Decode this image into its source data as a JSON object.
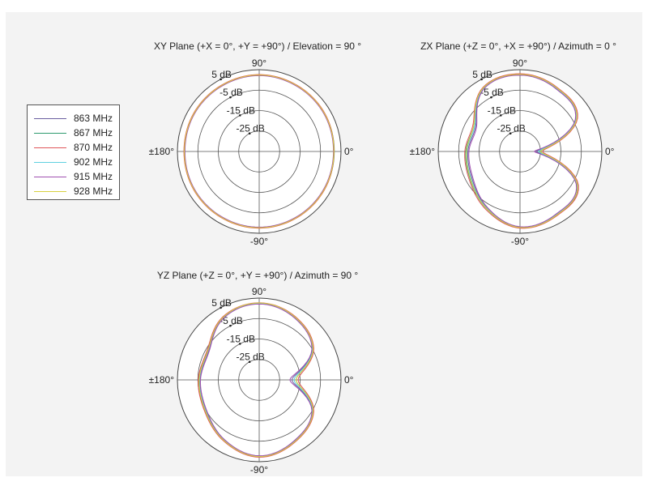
{
  "chart_data": [
    {
      "type": "polar-line",
      "title": "XY Plane (+X = 0°, +Y = +90°) / Elevation = 90 °",
      "angle_labels": {
        "top": "90°",
        "left": "±180°",
        "right": "0°",
        "bottom": "-90°"
      },
      "r_tick_labels": [
        "5 dB",
        "-5 dB",
        "-15 dB",
        "-25 dB"
      ],
      "r_range_db": [
        -35,
        5
      ],
      "angles_deg": [
        0,
        30,
        60,
        90,
        120,
        150,
        180,
        210,
        240,
        270,
        300,
        330
      ],
      "series_gain_db": [
        {
          "name": "863 MHz",
          "values": [
            1.5,
            1.8,
            2.0,
            2.3,
            2.0,
            1.8,
            1.5,
            1.8,
            2.0,
            2.2,
            2.0,
            1.7
          ]
        },
        {
          "name": "867 MHz",
          "values": [
            1.7,
            2.0,
            2.2,
            2.5,
            2.2,
            2.0,
            1.7,
            2.0,
            2.2,
            2.4,
            2.2,
            1.9
          ]
        },
        {
          "name": "870 MHz",
          "values": [
            1.6,
            2.1,
            2.3,
            2.6,
            2.3,
            2.1,
            1.8,
            2.1,
            2.3,
            2.5,
            2.3,
            2.0
          ]
        },
        {
          "name": "902 MHz",
          "values": [
            1.4,
            1.7,
            1.9,
            2.2,
            1.9,
            1.7,
            1.4,
            1.7,
            1.9,
            2.1,
            1.9,
            1.6
          ]
        },
        {
          "name": "915 MHz",
          "values": [
            1.3,
            1.6,
            1.8,
            2.1,
            1.8,
            1.6,
            1.3,
            1.6,
            1.8,
            2.0,
            1.8,
            1.5
          ]
        },
        {
          "name": "928 MHz",
          "values": [
            1.5,
            1.9,
            2.1,
            2.4,
            2.1,
            1.9,
            1.6,
            1.9,
            2.1,
            2.3,
            2.1,
            1.8
          ]
        }
      ]
    },
    {
      "type": "polar-line",
      "title": "ZX Plane (+Z = 0°, +X = +90°) / Azimuth = 0 °",
      "angle_labels": {
        "top": "90°",
        "left": "±180°",
        "right": "0°",
        "bottom": "-90°"
      },
      "r_tick_labels": [
        "5 dB",
        "-5 dB",
        "-15 dB",
        "-25 dB"
      ],
      "r_range_db": [
        -35,
        5
      ],
      "angles_deg": [
        0,
        30,
        60,
        90,
        120,
        150,
        180,
        210,
        240,
        270,
        300,
        330
      ],
      "series_gain_db": [
        {
          "name": "863 MHz",
          "values": [
            -27,
            -3.5,
            0.5,
            2.5,
            0.5,
            -10,
            -9.5,
            -8,
            -3,
            2,
            0.5,
            -3
          ]
        },
        {
          "name": "867 MHz",
          "values": [
            -25,
            -3,
            1.0,
            2.8,
            1.0,
            -9,
            -8.5,
            -7,
            -2.5,
            2.3,
            1.0,
            -2.5
          ]
        },
        {
          "name": "870 MHz",
          "values": [
            -24,
            -2.5,
            1.2,
            3.0,
            1.2,
            -8.5,
            -8,
            -6.5,
            -2,
            2.5,
            1.2,
            -2
          ]
        },
        {
          "name": "902 MHz",
          "values": [
            -26,
            -3.3,
            0.7,
            2.6,
            0.7,
            -9.5,
            -9,
            -7.5,
            -2.8,
            2.1,
            0.7,
            -2.8
          ]
        },
        {
          "name": "915 MHz",
          "values": [
            -28,
            -3.8,
            0.3,
            2.3,
            0.3,
            -10.5,
            -10,
            -8.5,
            -3.3,
            1.8,
            0.3,
            -3.3
          ]
        },
        {
          "name": "928 MHz",
          "values": [
            -25,
            -3.0,
            0.9,
            2.7,
            0.9,
            -9,
            -8.8,
            -7.2,
            -2.6,
            2.2,
            0.9,
            -2.6
          ]
        }
      ]
    },
    {
      "type": "polar-line",
      "title": "YZ Plane (+Z = 0°, +Y = +90°) / Azimuth = 90 °",
      "angle_labels": {
        "top": "90°",
        "left": "±180°",
        "right": "0°",
        "bottom": "-90°"
      },
      "r_tick_labels": [
        "5 dB",
        "-5 dB",
        "-15 dB",
        "-25 dB"
      ],
      "r_range_db": [
        -35,
        5
      ],
      "angles_deg": [
        0,
        30,
        60,
        90,
        120,
        150,
        180,
        210,
        240,
        270,
        300,
        330
      ],
      "series_gain_db": [
        {
          "name": "863 MHz",
          "values": [
            -19,
            -5,
            0,
            2.2,
            0,
            -6.5,
            -6,
            -5,
            -1,
            2.3,
            -0.5,
            -5
          ]
        },
        {
          "name": "867 MHz",
          "values": [
            -17,
            -4.5,
            0.4,
            2.5,
            0.4,
            -6,
            -5.5,
            -4.5,
            -0.6,
            2.6,
            -0.1,
            -4.5
          ]
        },
        {
          "name": "870 MHz",
          "values": [
            -16,
            -4.2,
            0.6,
            2.7,
            0.6,
            -5.7,
            -5.2,
            -4.2,
            -0.4,
            2.8,
            0.1,
            -4.2
          ]
        },
        {
          "name": "902 MHz",
          "values": [
            -18,
            -4.8,
            0.2,
            2.4,
            0.2,
            -6.2,
            -5.8,
            -4.8,
            -0.8,
            2.4,
            -0.3,
            -4.8
          ]
        },
        {
          "name": "915 MHz",
          "values": [
            -20,
            -5.3,
            -0.2,
            2.1,
            -0.2,
            -6.8,
            -6.3,
            -5.3,
            -1.2,
            2.1,
            -0.7,
            -5.3
          ]
        },
        {
          "name": "928 MHz",
          "values": [
            -17,
            -4.6,
            0.3,
            2.6,
            0.3,
            -6.1,
            -5.6,
            -4.6,
            -0.7,
            2.5,
            -0.2,
            -4.6
          ]
        }
      ]
    }
  ],
  "legend": {
    "items": [
      {
        "label": "863 MHz",
        "color": "#6b5fa0"
      },
      {
        "label": "867 MHz",
        "color": "#2e9a6e"
      },
      {
        "label": "870 MHz",
        "color": "#e0555a"
      },
      {
        "label": "902 MHz",
        "color": "#5fd0e0"
      },
      {
        "label": "915 MHz",
        "color": "#a050b0"
      },
      {
        "label": "928 MHz",
        "color": "#d8d040"
      }
    ]
  }
}
